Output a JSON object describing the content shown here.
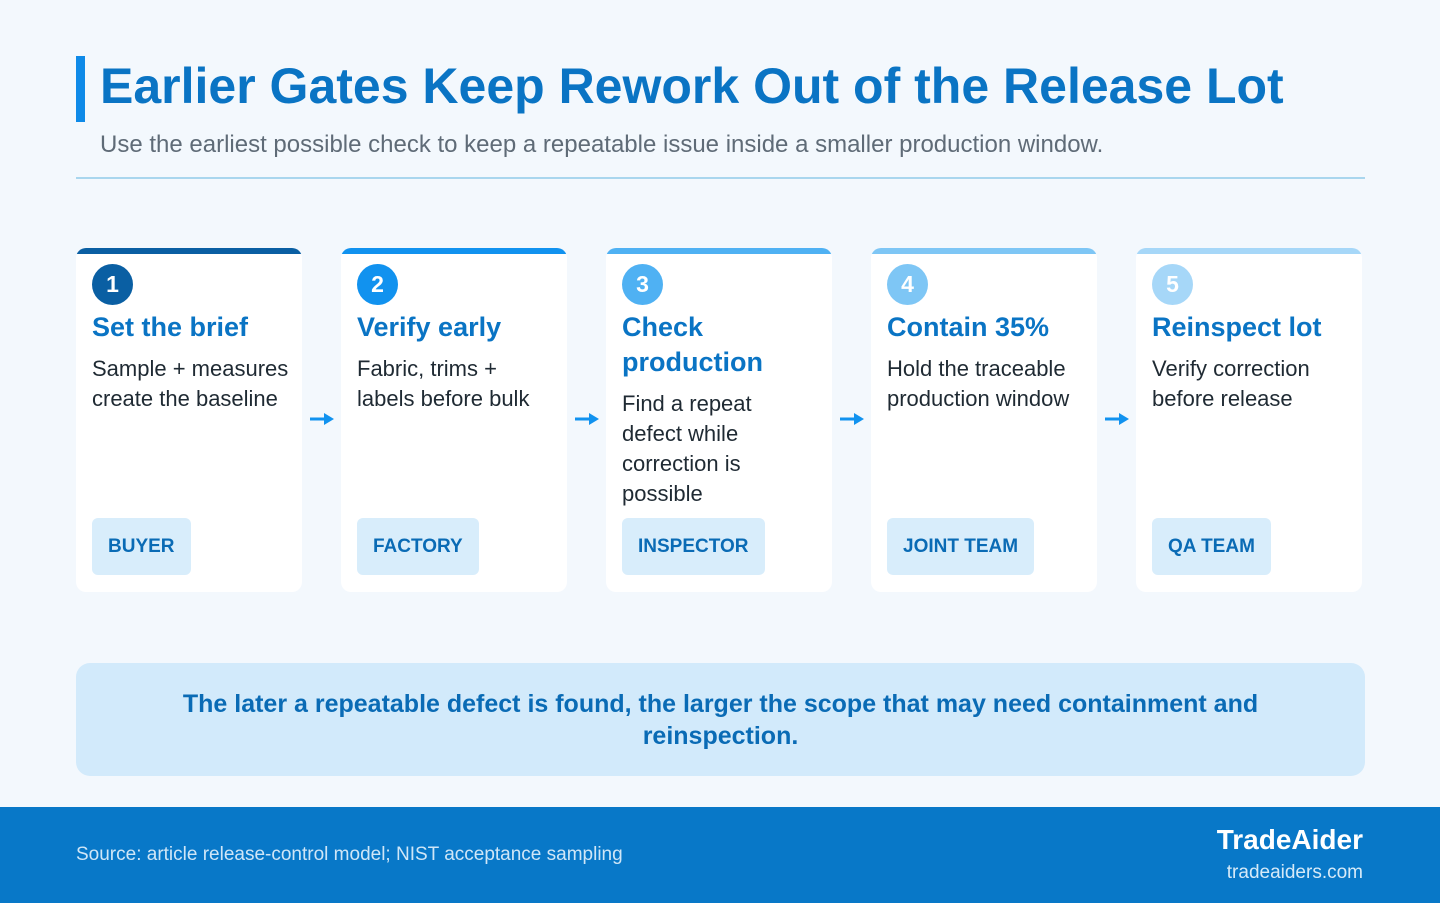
{
  "header": {
    "title": "Earlier Gates Keep Rework Out of the Release Lot",
    "subtitle": "Use the earliest possible check to keep a repeatable issue inside a smaller production window."
  },
  "steps": [
    {
      "number": "1",
      "title": "Set the brief",
      "body": "Sample + measures create the baseline",
      "owner": "BUYER",
      "color": "#0a5fa3"
    },
    {
      "number": "2",
      "title": "Verify early",
      "body": "Fabric, trims + labels before bulk",
      "owner": "FACTORY",
      "color": "#1192ef"
    },
    {
      "number": "3",
      "title": "Check production",
      "body": "Find a repeat defect while correction is possible",
      "owner": "INSPECTOR",
      "color": "#4fb1f3"
    },
    {
      "number": "4",
      "title": "Contain 35%",
      "body": "Hold the traceable production window",
      "owner": "JOINT TEAM",
      "color": "#7ec6f5"
    },
    {
      "number": "5",
      "title": "Reinspect lot",
      "body": "Verify correction before release",
      "owner": "QA TEAM",
      "color": "#a6d7f8"
    }
  ],
  "arrow_color": "#1192ef",
  "callout": "The later a repeatable defect is found, the larger the scope that may need containment and reinspection.",
  "footer": {
    "source": "Source: article release-control model; NIST acceptance sampling",
    "brand": "TradeAider",
    "url": "tradeaiders.com"
  }
}
